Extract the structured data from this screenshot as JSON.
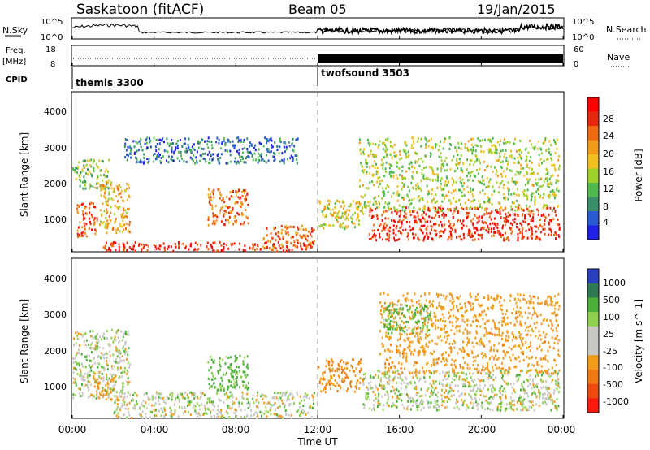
{
  "header": {
    "station": "Saskatoon (fitACF)",
    "beam": "Beam 05",
    "date": "19/Jan/2015"
  },
  "noise_panel": {
    "left_label": "N.Sky",
    "right_label": "N.Search",
    "y_top": "10^5",
    "y_bottom": "10^0",
    "right_y_top": "10^5",
    "right_y_bottom": "10^0"
  },
  "freq_panel": {
    "left_label_1": "Freq.",
    "left_label_2": "[MHz]",
    "right_label": "Nave",
    "y_top": "18",
    "y_bottom": "8",
    "right_y_top": "60",
    "right_y_bottom": "0"
  },
  "cpid_panel": {
    "label": "CPID",
    "programs": [
      {
        "name": "themis 3300",
        "start_hour": 0
      },
      {
        "name": "twofsound 3503",
        "start_hour": 12
      }
    ]
  },
  "power_panel": {
    "ylabel": "Slant Range [km]",
    "yticks": [
      "1000",
      "2000",
      "3000",
      "4000"
    ],
    "colorbar_label": "Power [dB]",
    "colorbar_ticks": [
      "4",
      "8",
      "12",
      "16",
      "20",
      "24",
      "28"
    ],
    "colorbar_colors": [
      "#1f1fe6",
      "#2a5ad0",
      "#3a8f6a",
      "#4fb84f",
      "#9ed02a",
      "#f0c020",
      "#f29a1a",
      "#f06a12",
      "#e8280e",
      "#ff0000"
    ]
  },
  "velocity_panel": {
    "ylabel": "Slant Range [km]",
    "yticks": [
      "1000",
      "2000",
      "3000",
      "4000"
    ],
    "colorbar_label": "Velocity [m s^-1]",
    "colorbar_ticks": [
      "1000",
      "500",
      "100",
      "25",
      "-25",
      "-100",
      "-500",
      "-1000"
    ],
    "colorbar_colors": [
      "#2a3fbf",
      "#2f7a55",
      "#4caf3a",
      "#8fd14f",
      "#c8c8c4",
      "#c8c8c4",
      "#f29c1a",
      "#f07a12",
      "#ee4a10",
      "#ff1a10"
    ]
  },
  "x_axis": {
    "label": "Time UT",
    "ticks": [
      "00:00",
      "04:00",
      "08:00",
      "12:00",
      "16:00",
      "20:00",
      "00:00"
    ]
  },
  "chart_data": [
    {
      "type": "heatmap",
      "title": "Power",
      "x_unit": "hours UT",
      "y_unit": "km",
      "xlim": [
        0,
        24
      ],
      "ylim": [
        180,
        4500
      ],
      "colorbar_range": [
        0,
        30
      ],
      "regions": [
        {
          "x": [
            0.2,
            1.2
          ],
          "y": [
            600,
            1600
          ],
          "value": 24
        },
        {
          "x": [
            0.0,
            1.8
          ],
          "y": [
            1900,
            2700
          ],
          "value": 12
        },
        {
          "x": [
            1.3,
            2.8
          ],
          "y": [
            700,
            2100
          ],
          "value": 18
        },
        {
          "x": [
            6.6,
            8.6
          ],
          "y": [
            900,
            1900
          ],
          "value": 22
        },
        {
          "x": [
            1.5,
            11.6
          ],
          "y": [
            200,
            450
          ],
          "value": 26
        },
        {
          "x": [
            9.3,
            11.8
          ],
          "y": [
            300,
            900
          ],
          "value": 22
        },
        {
          "x": [
            12.0,
            14.2
          ],
          "y": [
            800,
            1600
          ],
          "value": 16
        },
        {
          "x": [
            14.5,
            23.8
          ],
          "y": [
            500,
            1400
          ],
          "value": 26
        },
        {
          "x": [
            14.0,
            23.8
          ],
          "y": [
            1300,
            3300
          ],
          "value": 14
        },
        {
          "x": [
            2.5,
            11.0
          ],
          "y": [
            2600,
            3300
          ],
          "value": 6
        }
      ]
    },
    {
      "type": "heatmap",
      "title": "Velocity",
      "x_unit": "hours UT",
      "y_unit": "km",
      "xlim": [
        0,
        24
      ],
      "ylim": [
        180,
        4500
      ],
      "colorbar_range": [
        -1000,
        1000
      ],
      "regions": [
        {
          "x": [
            0.0,
            2.8
          ],
          "y": [
            700,
            2600
          ],
          "value": 0
        },
        {
          "x": [
            1.0,
            2.0
          ],
          "y": [
            700,
            1300
          ],
          "value": -200
        },
        {
          "x": [
            6.6,
            8.6
          ],
          "y": [
            900,
            1900
          ],
          "value": 150
        },
        {
          "x": [
            2.0,
            11.8
          ],
          "y": [
            200,
            900
          ],
          "value": 0
        },
        {
          "x": [
            12.0,
            14.2
          ],
          "y": [
            900,
            1800
          ],
          "value": -300
        },
        {
          "x": [
            14.2,
            23.8
          ],
          "y": [
            400,
            1500
          ],
          "value": 0
        },
        {
          "x": [
            15.0,
            23.8
          ],
          "y": [
            1400,
            3600
          ],
          "value": -200
        },
        {
          "x": [
            15.2,
            17.5
          ],
          "y": [
            2500,
            3300
          ],
          "value": 120
        }
      ]
    }
  ]
}
